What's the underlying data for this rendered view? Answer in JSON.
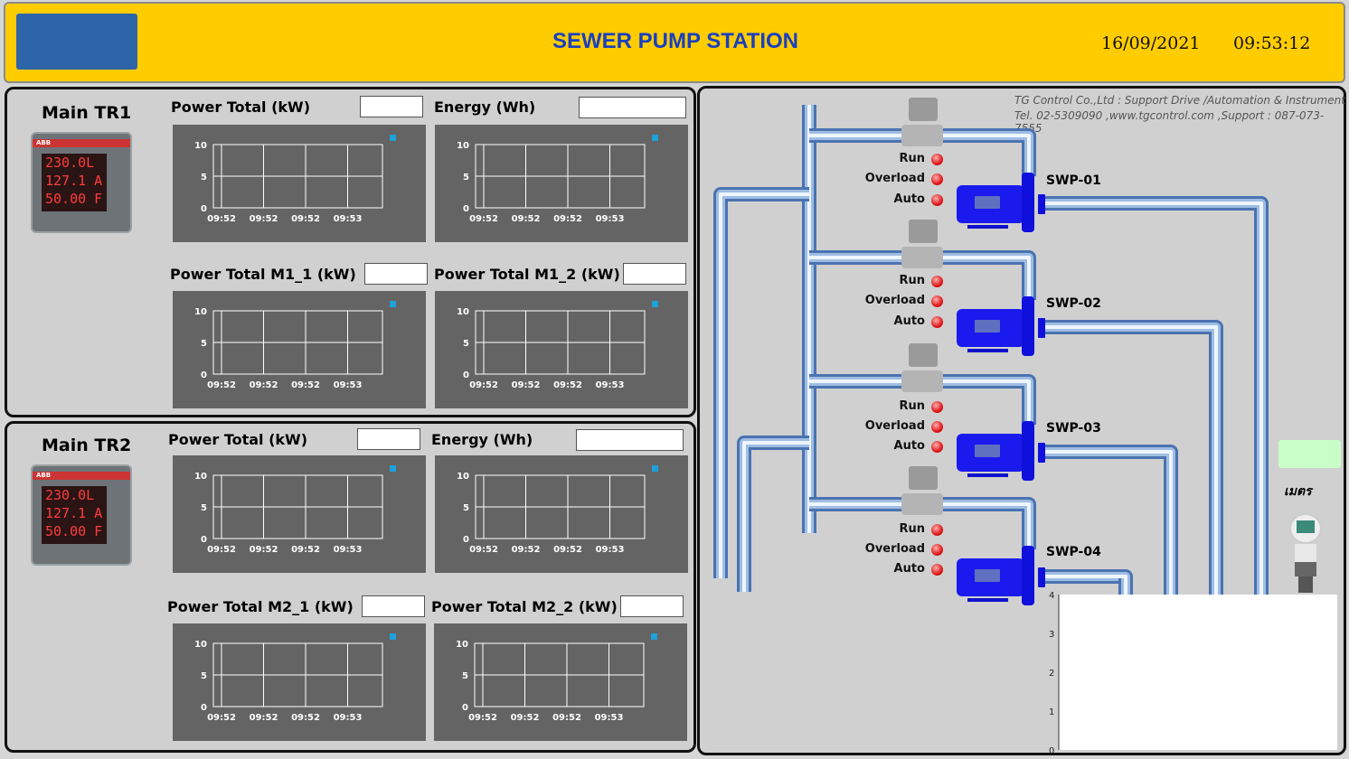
{
  "header": {
    "title": "SEWER PUMP STATION",
    "date": "16/09/2021",
    "time": "09:53:12",
    "accent": "#ffcc00",
    "title_color": "#1a3fbf"
  },
  "meter_display": {
    "brand": "ABB",
    "lines": [
      "230.0L",
      "127.1 A",
      "50.00 F"
    ]
  },
  "tr1": {
    "title": "Main TR1",
    "labels": [
      "Power Total (kW)",
      "Energy (Wh)",
      "Power Total M1_1 (kW)",
      "Power Total M1_2 (kW)"
    ],
    "values": [
      "",
      "",
      "",
      ""
    ]
  },
  "tr2": {
    "title": "Main TR2",
    "labels": [
      "Power Total (kW)",
      "Energy (Wh)",
      "Power Total M2_1 (kW)",
      "Power Total M2_2 (kW)"
    ],
    "values": [
      "",
      "",
      "",
      ""
    ]
  },
  "chart_data": {
    "type": "line",
    "ylim": [
      0,
      10
    ],
    "y_ticks": [
      "0",
      "5",
      "10"
    ],
    "x_ticks": [
      "09:52",
      "09:52",
      "09:52",
      "09:53"
    ],
    "grid": true,
    "legend": "top-right",
    "series_color": "#1ea0d8",
    "series": []
  },
  "company": {
    "line1": "TG Control Co.,Ltd : Support Drive /Automation & Instrument",
    "line2": "Tel. 02-5309090 ,www.tgcontrol.com ,Support : 087-073-7555"
  },
  "pumps": [
    {
      "name": "SWP-01",
      "status": [
        "Run",
        "Overload",
        "Auto"
      ]
    },
    {
      "name": "SWP-02",
      "status": [
        "Run",
        "Overload",
        "Auto"
      ]
    },
    {
      "name": "SWP-03",
      "status": [
        "Run",
        "Overload",
        "Auto"
      ]
    },
    {
      "name": "SWP-04",
      "status": [
        "Run",
        "Overload",
        "Auto"
      ]
    }
  ],
  "level": {
    "value": "",
    "unit": "เมตร",
    "axis_ticks": [
      "0",
      "1",
      "2",
      "3",
      "4"
    ],
    "ylim": [
      0,
      4
    ]
  }
}
